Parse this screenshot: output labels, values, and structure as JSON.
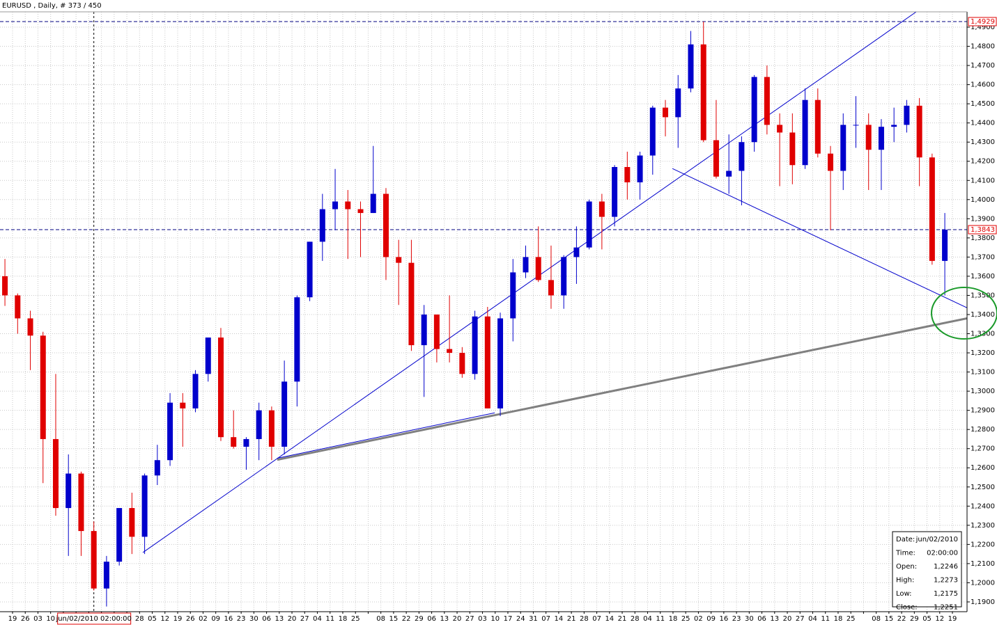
{
  "chart_data": {
    "type": "candlestick",
    "title": "EURUSD , Daily, # 373 / 450",
    "categories": [
      null,
      "19",
      "26",
      "03",
      "10",
      null,
      null,
      null,
      null,
      null,
      null,
      "28",
      "05",
      "12",
      "19",
      "26",
      "02",
      "09",
      "16",
      "23",
      "30",
      "06",
      "13",
      "20",
      "27",
      "04",
      "11",
      "18",
      "25",
      null,
      "08",
      "15",
      "22",
      "29",
      "06",
      "13",
      "20",
      "27",
      "03",
      "10",
      "17",
      "24",
      "31",
      "07",
      "14",
      "21",
      "28",
      "07",
      "14",
      "21",
      "28",
      "04",
      "11",
      "18",
      "25",
      "02",
      "09",
      "16",
      "23",
      "30",
      "06",
      "13",
      "20",
      "27",
      "04",
      "11",
      "18",
      "25",
      null,
      "08",
      "15",
      "22",
      "29",
      "05",
      "12",
      "19"
    ],
    "open": [
      1.36,
      1.35,
      1.338,
      1.329,
      1.275,
      1.239,
      1.257,
      1.227,
      1.197,
      1.211,
      1.239,
      1.224,
      1.256,
      1.264,
      1.294,
      1.291,
      1.309,
      1.328,
      1.276,
      1.271,
      1.275,
      1.29,
      1.271,
      1.305,
      1.349,
      1.378,
      1.395,
      1.399,
      1.395,
      1.393,
      1.403,
      1.37,
      1.367,
      1.324,
      1.34,
      1.322,
      1.32,
      1.309,
      1.339,
      1.291,
      1.338,
      1.362,
      1.37,
      1.358,
      1.35,
      1.37,
      1.375,
      1.399,
      1.391,
      1.417,
      1.409,
      1.423,
      1.448,
      1.443,
      1.458,
      1.481,
      1.431,
      1.412,
      1.415,
      1.43,
      1.464,
      1.439,
      1.435,
      1.418,
      1.452,
      1.424,
      1.415,
      1.439,
      1.439,
      1.426,
      1.438,
      1.439,
      1.449,
      1.422,
      1.368,
      null
    ],
    "high": [
      1.369,
      1.351,
      1.342,
      1.331,
      1.309,
      1.267,
      1.258,
      1.232,
      1.214,
      1.239,
      1.247,
      1.257,
      1.272,
      1.299,
      1.299,
      1.311,
      1.328,
      1.333,
      1.29,
      1.276,
      1.294,
      1.292,
      1.316,
      1.35,
      1.378,
      1.403,
      1.416,
      1.405,
      1.399,
      1.428,
      1.406,
      1.379,
      1.379,
      1.345,
      1.34,
      1.35,
      1.323,
      1.342,
      1.344,
      1.341,
      1.369,
      1.376,
      1.386,
      1.376,
      1.371,
      1.386,
      1.4,
      1.403,
      1.418,
      1.425,
      1.425,
      1.449,
      1.452,
      1.465,
      1.488,
      1.4929,
      1.452,
      1.434,
      1.433,
      1.465,
      1.47,
      1.445,
      1.445,
      1.458,
      1.458,
      1.428,
      1.445,
      1.454,
      1.445,
      1.442,
      1.448,
      1.452,
      1.453,
      1.424,
      1.393,
      null
    ],
    "low": [
      1.3445,
      1.33,
      1.311,
      1.252,
      1.235,
      1.214,
      1.214,
      1.196,
      1.1876,
      1.209,
      1.215,
      1.215,
      1.251,
      1.261,
      1.271,
      1.289,
      1.305,
      1.274,
      1.27,
      1.259,
      1.264,
      1.264,
      1.267,
      1.292,
      1.347,
      1.368,
      1.384,
      1.369,
      1.37,
      1.393,
      1.358,
      1.345,
      1.321,
      1.297,
      1.315,
      1.315,
      1.307,
      1.306,
      1.291,
      1.287,
      1.326,
      1.359,
      1.357,
      1.343,
      1.343,
      1.356,
      1.374,
      1.374,
      1.386,
      1.4,
      1.4,
      1.413,
      1.433,
      1.427,
      1.456,
      1.43,
      1.411,
      1.403,
      1.397,
      1.425,
      1.434,
      1.407,
      1.408,
      1.416,
      1.422,
      1.384,
      1.405,
      1.427,
      1.405,
      1.405,
      1.43,
      1.435,
      1.407,
      1.366,
      1.35,
      null
    ],
    "close": [
      1.35,
      1.338,
      1.329,
      1.275,
      1.239,
      1.257,
      1.227,
      1.197,
      1.211,
      1.239,
      1.224,
      1.256,
      1.264,
      1.294,
      1.291,
      1.309,
      1.328,
      1.276,
      1.271,
      1.275,
      1.29,
      1.271,
      1.305,
      1.349,
      1.378,
      1.395,
      1.399,
      1.395,
      1.393,
      1.403,
      1.37,
      1.367,
      1.324,
      1.34,
      1.322,
      1.32,
      1.309,
      1.339,
      1.291,
      1.338,
      1.362,
      1.37,
      1.358,
      1.35,
      1.37,
      1.375,
      1.399,
      1.391,
      1.417,
      1.409,
      1.423,
      1.448,
      1.443,
      1.458,
      1.481,
      1.431,
      1.412,
      1.415,
      1.43,
      1.464,
      1.439,
      1.435,
      1.418,
      1.452,
      1.424,
      1.415,
      1.439,
      1.439,
      1.426,
      1.438,
      1.439,
      1.449,
      1.422,
      1.368,
      1.3843,
      null
    ],
    "up_color": "#0000cc",
    "down_color": "#e00000",
    "ylim": [
      1.1849,
      1.498
    ],
    "yticks": [
      {
        "value": 1.19,
        "label": "1,1900"
      },
      {
        "value": 1.2,
        "label": "1,2000"
      },
      {
        "value": 1.21,
        "label": "1,2100"
      },
      {
        "value": 1.22,
        "label": "1,2200"
      },
      {
        "value": 1.23,
        "label": "1,2300"
      },
      {
        "value": 1.24,
        "label": "1,2400"
      },
      {
        "value": 1.25,
        "label": "1,2500"
      },
      {
        "value": 1.26,
        "label": "1,2600"
      },
      {
        "value": 1.27,
        "label": "1,2700"
      },
      {
        "value": 1.28,
        "label": "1,2800"
      },
      {
        "value": 1.29,
        "label": "1,2900"
      },
      {
        "value": 1.3,
        "label": "1,3000"
      },
      {
        "value": 1.31,
        "label": "1,3100"
      },
      {
        "value": 1.32,
        "label": "1,3200"
      },
      {
        "value": 1.33,
        "label": "1,3300"
      },
      {
        "value": 1.34,
        "label": "1,3400"
      },
      {
        "value": 1.35,
        "label": "1,3500"
      },
      {
        "value": 1.36,
        "label": "1,3600"
      },
      {
        "value": 1.37,
        "label": "1,3700"
      },
      {
        "value": 1.38,
        "label": "1,3800"
      },
      {
        "value": 1.39,
        "label": "1,3900"
      },
      {
        "value": 1.4,
        "label": "1,4000"
      },
      {
        "value": 1.41,
        "label": "1,4100"
      },
      {
        "value": 1.42,
        "label": "1,4200"
      },
      {
        "value": 1.43,
        "label": "1,4300"
      },
      {
        "value": 1.44,
        "label": "1,4400"
      },
      {
        "value": 1.45,
        "label": "1,4500"
      },
      {
        "value": 1.46,
        "label": "1,4600"
      },
      {
        "value": 1.47,
        "label": "1,4700"
      },
      {
        "value": 1.48,
        "label": "1,4800"
      },
      {
        "value": 1.49,
        "label": "1,4900"
      }
    ],
    "grid": true,
    "hlines": [
      {
        "value": 1.4929,
        "label": "1,4929"
      },
      {
        "value": 1.3843,
        "label": "1,3843"
      }
    ],
    "trendlines": [
      {
        "x": [
          10.86,
          71.75
        ],
        "y": [
          1.2158,
          1.498
        ],
        "color": "#0000cc",
        "width": 1
      },
      {
        "x": [
          52.55,
          75.75
        ],
        "y": [
          1.4162,
          1.3435
        ],
        "color": "#0000cc",
        "width": 1
      },
      {
        "x": [
          21.44,
          75.75
        ],
        "y": [
          1.2642,
          1.338
        ],
        "color": "#808080",
        "width": 3
      },
      {
        "x": [
          21.44,
          38.56
        ],
        "y": [
          1.265,
          1.2887
        ],
        "color": "#0000cc",
        "width": 1
      }
    ],
    "cursor_label": "jun/02/2010 02:00:00",
    "info_panel": [
      {
        "label": "Date:",
        "value": "jun/02/2010"
      },
      {
        "label": "Time:",
        "value": "02:00:00"
      },
      {
        "label": "Open:",
        "value": {
          "value": 1.2246,
          "label": "1,2246"
        }
      },
      {
        "label": "High:",
        "value": {
          "value": 1.2273,
          "label": "1,2273"
        }
      },
      {
        "label": "Low:",
        "value": {
          "value": 1.2175,
          "label": "1,2175"
        }
      },
      {
        "label": "Close:",
        "value": {
          "value": 1.2251,
          "label": "1,2251"
        }
      }
    ]
  }
}
